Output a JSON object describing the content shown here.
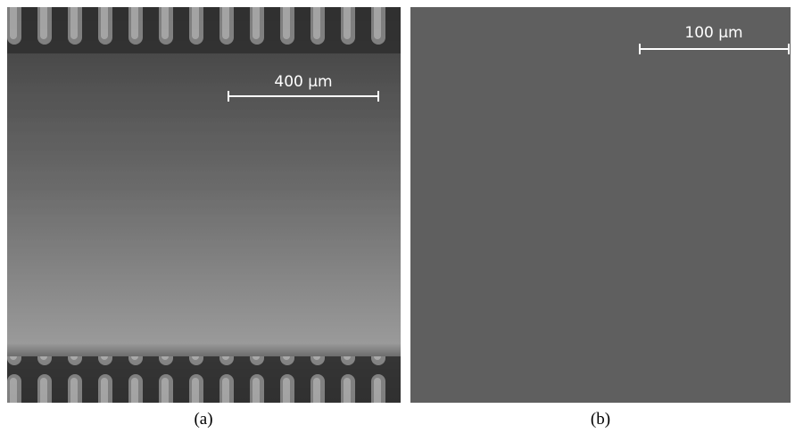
{
  "panels": [
    {
      "scale_bar": "400 µm",
      "caption": "(a)"
    },
    {
      "scale_bar": "100 µm",
      "caption": "(b)"
    }
  ]
}
